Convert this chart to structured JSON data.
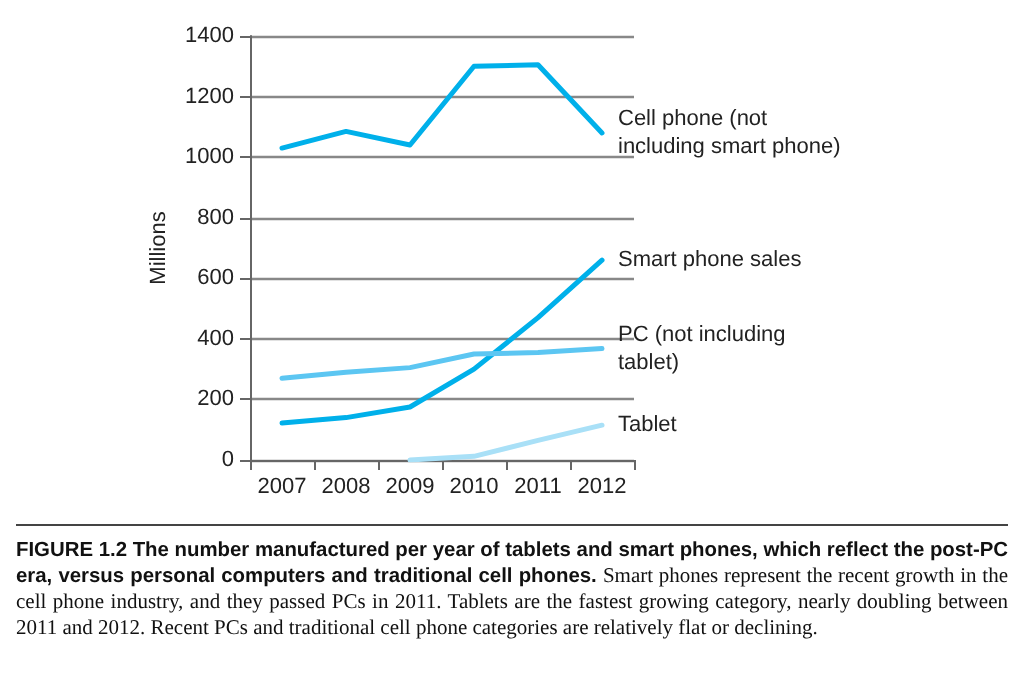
{
  "chart_data": {
    "type": "line",
    "title": "FIGURE 1.2 The number manufactured per year of tablets and smart phones, which reflect the post-PC era, versus personal computers and traditional cell phones.",
    "subtitle": "Smart phones represent the recent growth in the cell phone industry, and they passed PCs in 2011. Tablets are the fastest growing category, nearly doubling between 2011 and 2012. Recent PCs and traditional cell phone categories are relatively flat or declining.",
    "ylabel": "Millions",
    "categories": [
      "2007",
      "2008",
      "2009",
      "2010",
      "2011",
      "2012"
    ],
    "series": [
      {
        "name": "Cell phone (not including smart phone)",
        "color": "#00b0ea",
        "values": [
          1030,
          1085,
          1040,
          1300,
          1305,
          1080
        ]
      },
      {
        "name": "Smart phone sales",
        "color": "#00b0ea",
        "values": [
          122,
          140,
          175,
          300,
          470,
          660
        ]
      },
      {
        "name": "PC (not including tablet)",
        "color": "#5cc6f2",
        "values": [
          270,
          290,
          305,
          350,
          355,
          368
        ]
      },
      {
        "name": "Tablet",
        "color": "#a9e0f7",
        "values": [
          null,
          null,
          0,
          12,
          65,
          115
        ]
      }
    ],
    "ylim": [
      0,
      1400
    ],
    "yticks": [
      0,
      200,
      400,
      600,
      800,
      1000,
      1200,
      1400
    ],
    "grid": "y",
    "legend": false,
    "marker": "none",
    "line_style": "solid"
  }
}
